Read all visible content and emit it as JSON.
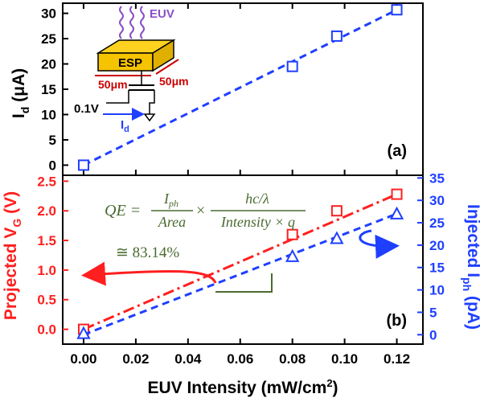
{
  "chart_data": [
    {
      "panel": "(a)",
      "type": "scatter",
      "ylabel": "I",
      "ylabel_sub": "d",
      "ylabel_unit": " (μA)",
      "xlim": [
        -0.008,
        0.13
      ],
      "ylim": [
        -2,
        32
      ],
      "yticks": [
        "0",
        "5",
        "10",
        "15",
        "20",
        "25",
        "30"
      ],
      "ytick_values": [
        0,
        5,
        10,
        15,
        20,
        25,
        30
      ],
      "series": [
        {
          "color": "#1f3fff",
          "marker": "square",
          "x": [
            0.0,
            0.08,
            0.097,
            0.12
          ],
          "y": [
            0.0,
            19.5,
            25.5,
            30.7
          ],
          "fit": {
            "x": [
              0.0,
              0.12
            ],
            "y": [
              0.0,
              30.7
            ],
            "style": "dashed"
          }
        }
      ],
      "inset": {
        "euv_label": "EUV",
        "chip_label": "ESP",
        "dim_x": "50μm",
        "dim_y": "50μm",
        "voltage": "0.1V",
        "current_label": "I",
        "current_sub": "d"
      }
    },
    {
      "panel": "(b)",
      "type": "scatter",
      "xlabel": "EUV Intensity (mW/cm",
      "xlabel_sup": "2",
      "xlabel_end": ")",
      "xlim": [
        -0.008,
        0.13
      ],
      "xticks": [
        "0.00",
        "0.02",
        "0.04",
        "0.06",
        "0.08",
        "0.10",
        "0.12"
      ],
      "xtick_values": [
        0.0,
        0.02,
        0.04,
        0.06,
        0.08,
        0.1,
        0.12
      ],
      "ylabel_left": "Projected V",
      "ylabel_left_sub": "G",
      "ylabel_left_unit": " (V)",
      "ylim_left": [
        -0.25,
        2.6
      ],
      "yticks_left": [
        "0.0",
        "0.5",
        "1.0",
        "1.5",
        "2.0",
        "2.5"
      ],
      "ytick_left_values": [
        0.0,
        0.5,
        1.0,
        1.5,
        2.0,
        2.5
      ],
      "ylabel_right": "Injected I",
      "ylabel_right_sub": "ph",
      "ylabel_right_unit": " (pA)",
      "ylim_right": [
        -2.1,
        35.6
      ],
      "yticks_right": [
        "0",
        "5",
        "10",
        "15",
        "20",
        "25",
        "30",
        "35"
      ],
      "ytick_right_values": [
        0,
        5,
        10,
        15,
        20,
        25,
        30,
        35
      ],
      "series": [
        {
          "axis": "left",
          "color": "#ff1f1f",
          "marker": "square",
          "x": [
            0.0,
            0.08,
            0.097,
            0.12
          ],
          "y": [
            0.0,
            1.6,
            2.0,
            2.28
          ],
          "fit": {
            "x": [
              0.0,
              0.12
            ],
            "y": [
              0.0,
              2.28
            ],
            "style": "dashdot"
          }
        },
        {
          "axis": "right",
          "color": "#1f3fff",
          "marker": "triangle",
          "x": [
            0.0,
            0.08,
            0.097,
            0.12
          ],
          "y": [
            0.3,
            17.5,
            21.5,
            27.0
          ],
          "fit": {
            "x": [
              0.0,
              0.12
            ],
            "y": [
              0.0,
              27.0
            ],
            "style": "dashed"
          }
        }
      ],
      "equation": {
        "lhs": "QE =",
        "num1": "I",
        "num1_sub": "ph",
        "den1": "Area",
        "times": "×",
        "num2": "hc/λ",
        "den2": "Intensity × q",
        "result": "≅ 83.14%"
      }
    }
  ],
  "colors": {
    "red": "#ff1f1f",
    "blue": "#1f3fff",
    "green": "#4a6b30",
    "purple": "#8a4fc8",
    "chip": "#ffd21f"
  }
}
